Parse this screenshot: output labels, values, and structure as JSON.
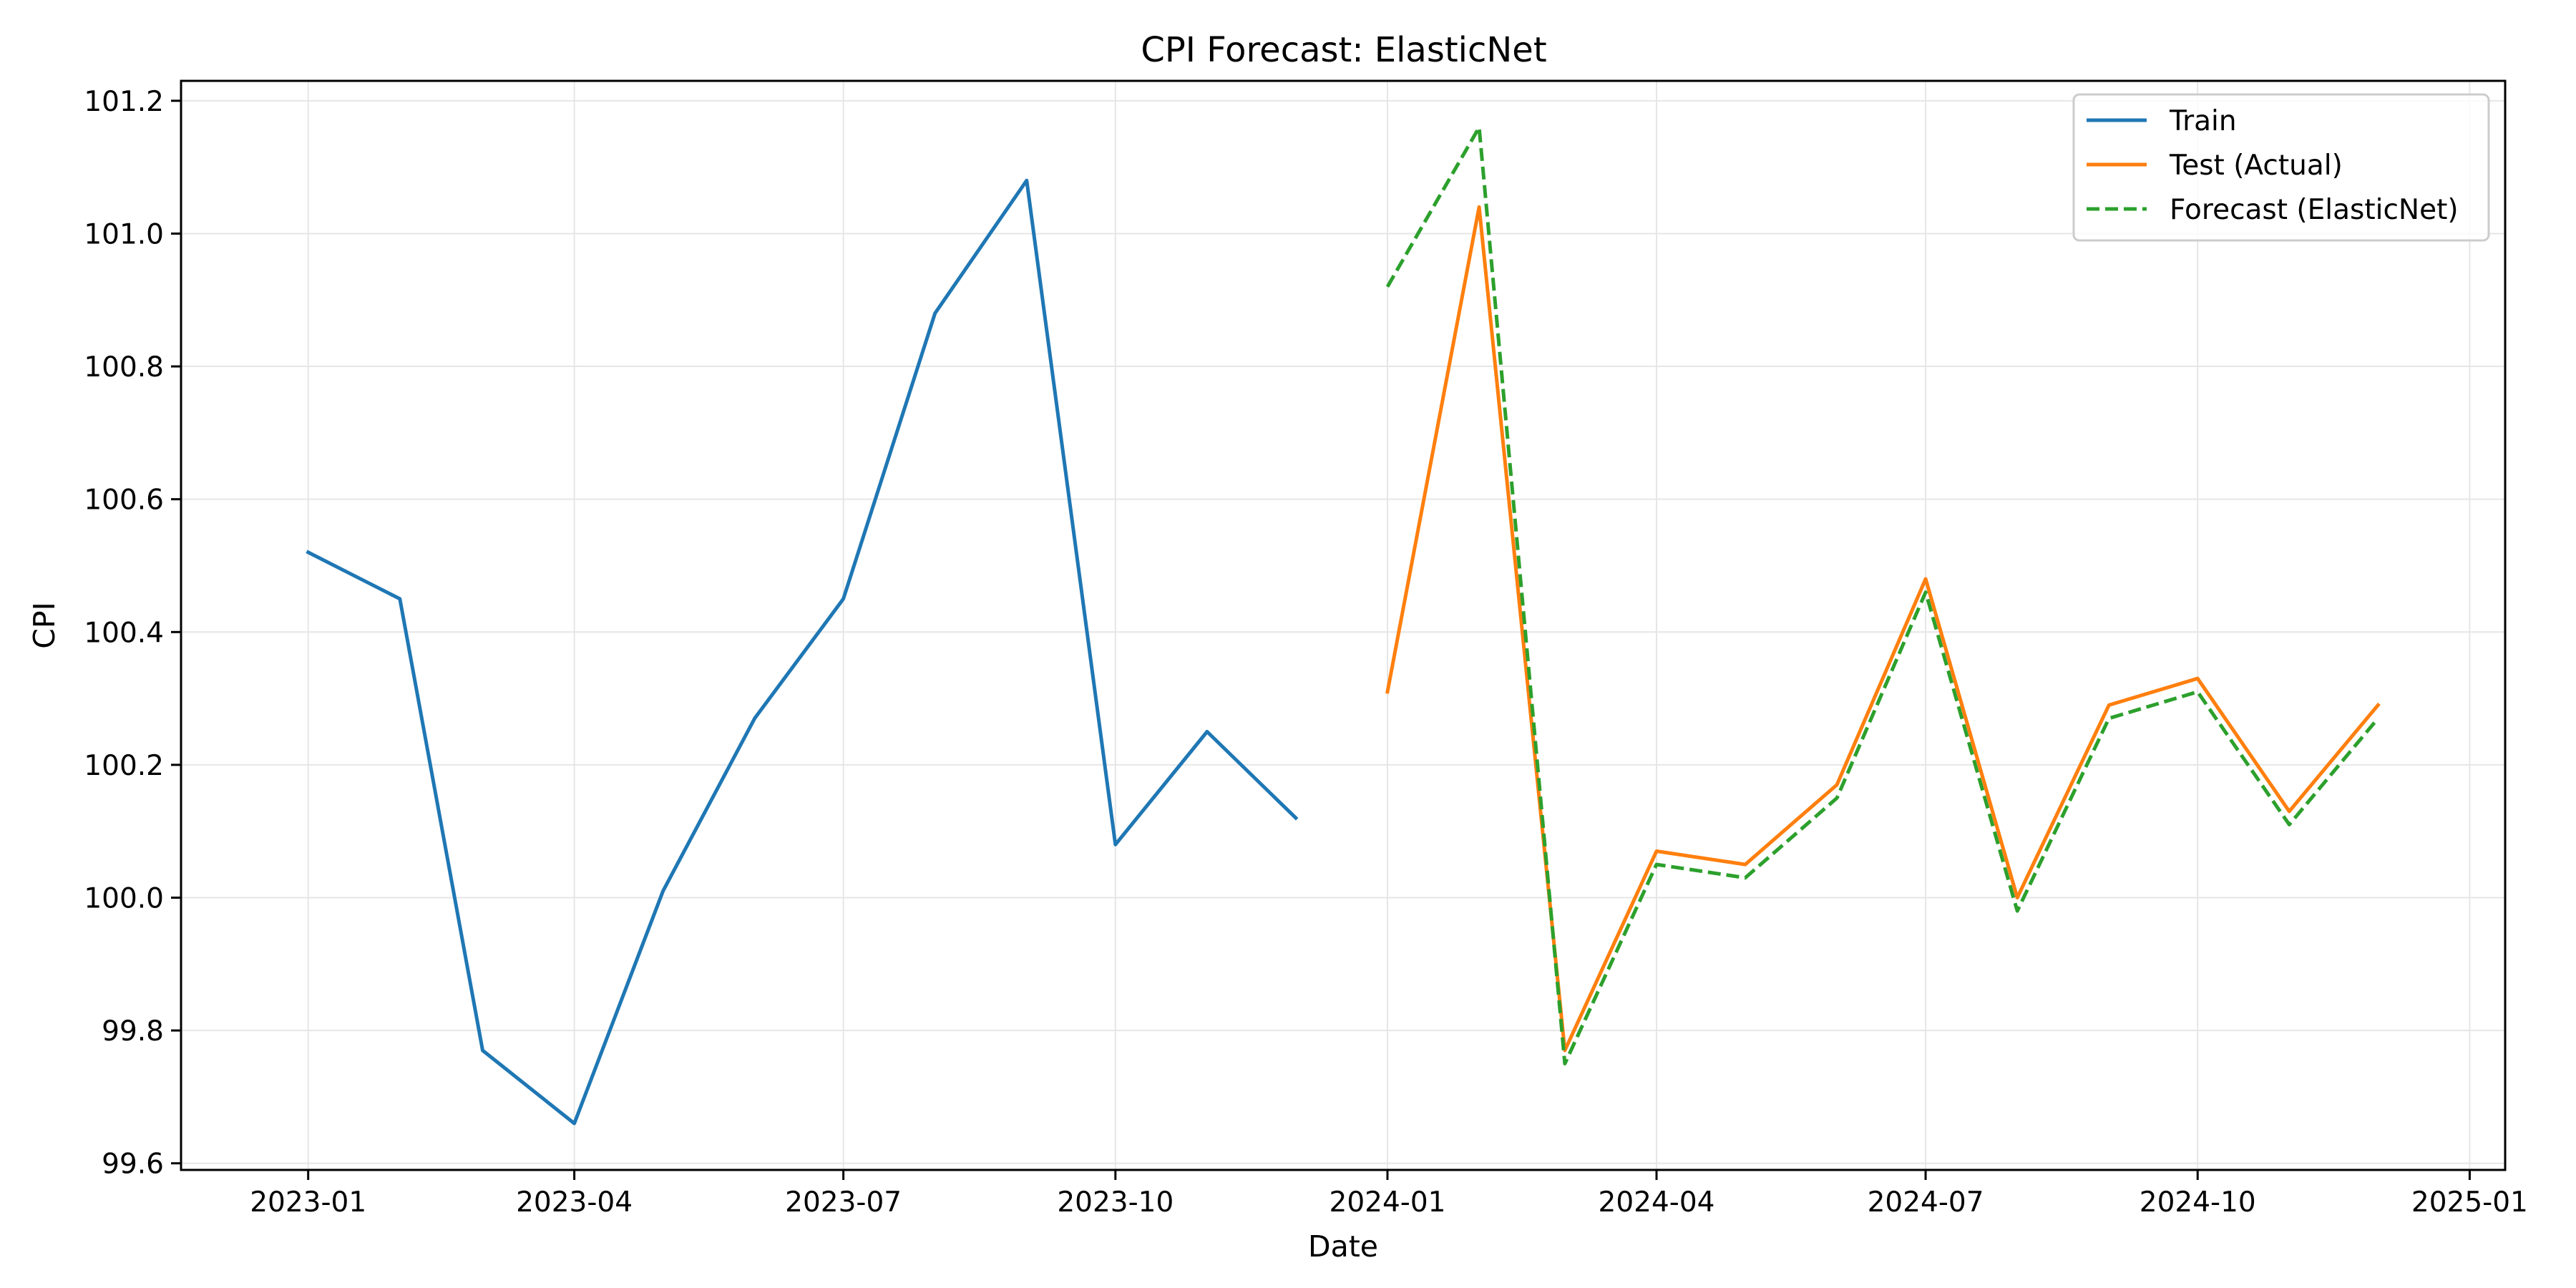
{
  "chart_data": {
    "type": "line",
    "title": "CPI Forecast: ElasticNet",
    "xlabel": "Date",
    "ylabel": "CPI",
    "x_axis": "date",
    "xlim": [
      "2022-11-19",
      "2025-01-13"
    ],
    "ylim": [
      99.59,
      101.23
    ],
    "xticks": [
      "2023-01",
      "2023-04",
      "2023-07",
      "2023-10",
      "2024-01",
      "2024-04",
      "2024-07",
      "2024-10",
      "2025-01"
    ],
    "yticks": [
      "99.6",
      "99.8",
      "100.0",
      "100.2",
      "100.4",
      "100.6",
      "100.8",
      "101.0",
      "101.2"
    ],
    "grid": true,
    "legend_position": "top-right",
    "series": [
      {
        "name": "Train",
        "color": "#1f77b4",
        "style": "solid",
        "x": [
          "2023-01-01",
          "2023-02-01",
          "2023-03-01",
          "2023-04-01",
          "2023-05-01",
          "2023-06-01",
          "2023-07-01",
          "2023-08-01",
          "2023-09-01",
          "2023-10-01",
          "2023-11-01",
          "2023-12-01"
        ],
        "values": [
          100.52,
          100.45,
          99.77,
          99.66,
          100.01,
          100.27,
          100.45,
          100.88,
          101.08,
          100.08,
          100.25,
          100.12
        ]
      },
      {
        "name": "Test (Actual)",
        "color": "#ff7f0e",
        "style": "solid",
        "x": [
          "2024-01-01",
          "2024-02-01",
          "2024-03-01",
          "2024-04-01",
          "2024-05-01",
          "2024-06-01",
          "2024-07-01",
          "2024-08-01",
          "2024-09-01",
          "2024-10-01",
          "2024-11-01",
          "2024-12-01"
        ],
        "values": [
          100.31,
          101.04,
          99.77,
          100.07,
          100.05,
          100.17,
          100.48,
          100.0,
          100.29,
          100.33,
          100.13,
          100.29
        ]
      },
      {
        "name": "Forecast (ElasticNet)",
        "color": "#2ca02c",
        "style": "dashed",
        "x": [
          "2024-01-01",
          "2024-02-01",
          "2024-03-01",
          "2024-04-01",
          "2024-05-01",
          "2024-06-01",
          "2024-07-01",
          "2024-08-01",
          "2024-09-01",
          "2024-10-01",
          "2024-11-01",
          "2024-12-01"
        ],
        "values": [
          100.92,
          101.16,
          99.75,
          100.05,
          100.03,
          100.15,
          100.46,
          99.98,
          100.27,
          100.31,
          100.11,
          100.27
        ]
      }
    ]
  }
}
